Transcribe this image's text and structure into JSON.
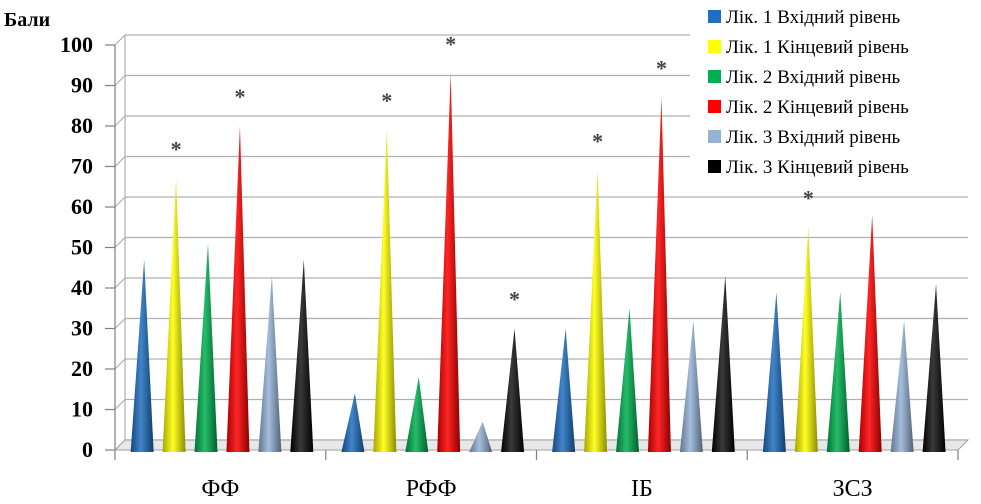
{
  "chart_data": {
    "type": "bar",
    "bar_shape": "3d-cone",
    "ylabel": "Бали",
    "ylim": [
      0,
      100
    ],
    "yticks": [
      0,
      10,
      20,
      30,
      40,
      50,
      60,
      70,
      80,
      90,
      100
    ],
    "categories": [
      "ФФ",
      "РФФ",
      "ІБ",
      "ЗСЗ"
    ],
    "legend_position": "top-right",
    "grid": true,
    "series": [
      {
        "name": "Лік. 1 Вхідний рівень",
        "color": "#1f6fc0",
        "values": [
          47,
          14,
          30,
          39
        ],
        "asterisk": [
          false,
          false,
          false,
          false
        ]
      },
      {
        "name": "Лік. 1 Кінцевий рівень",
        "color": "#ffff00",
        "values": [
          67,
          79,
          69,
          55
        ],
        "asterisk": [
          true,
          true,
          true,
          true
        ]
      },
      {
        "name": "Лік. 2 Вхідний рівень",
        "color": "#00b050",
        "values": [
          51,
          18,
          35,
          39
        ],
        "asterisk": [
          false,
          false,
          false,
          false
        ]
      },
      {
        "name": "Лік. 2 Кінцевий рівень",
        "color": "#ff0000",
        "values": [
          80,
          93,
          87,
          58
        ],
        "asterisk": [
          true,
          true,
          true,
          true
        ]
      },
      {
        "name": "Лік. 3 Вхідний рівень",
        "color": "#95b3d7",
        "values": [
          43,
          7,
          32,
          32
        ],
        "asterisk": [
          false,
          false,
          false,
          false
        ]
      },
      {
        "name": "Лік. 3 Кінцевий рівень",
        "color": "#000000",
        "values": [
          47,
          30,
          43,
          41
        ],
        "asterisk": [
          false,
          true,
          false,
          false
        ]
      }
    ],
    "annotation_symbol": "*"
  }
}
